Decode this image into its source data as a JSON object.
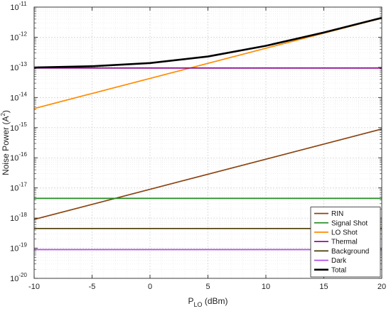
{
  "chart_data": {
    "type": "line",
    "title": "",
    "xlabel": {
      "base": "P",
      "sub": "LO",
      "rest": " (dBm)"
    },
    "ylabel": {
      "base": "Noise Power (A",
      "sup": "2",
      "rest": ")"
    },
    "xlim": [
      -10,
      20
    ],
    "ylim_exp": [
      -20,
      -11
    ],
    "y_scale": "log",
    "grid": true,
    "legend_position": "bottom-right",
    "x_ticks": [
      "-10",
      "-5",
      "0",
      "5",
      "10",
      "15",
      "20"
    ],
    "y_tick_base": "10",
    "y_tick_exponents": [
      "-20",
      "-19",
      "-18",
      "-17",
      "-16",
      "-15",
      "-14",
      "-13",
      "-12",
      "-11"
    ],
    "series": [
      {
        "name": "RIN",
        "color": "#8B4513",
        "x": [
          -10,
          20
        ],
        "y": [
          9e-19,
          9e-16
        ]
      },
      {
        "name": "Signal Shot",
        "color": "#228B22",
        "x": [
          -10,
          20
        ],
        "y": [
          4.5e-18,
          4.5e-18
        ]
      },
      {
        "name": "LO Shot",
        "color": "#FF8C00",
        "x": [
          -10,
          20
        ],
        "y": [
          4.3e-15,
          4.3e-12
        ]
      },
      {
        "name": "Thermal",
        "color": "#8B008B",
        "x": [
          -10,
          20
        ],
        "y": [
          9.5e-14,
          9.5e-14
        ]
      },
      {
        "name": "Background",
        "color": "#4A3B00",
        "x": [
          -10,
          20
        ],
        "y": [
          4.5e-19,
          4.5e-19
        ]
      },
      {
        "name": "Dark",
        "color": "#B04FE8",
        "x": [
          -10,
          20
        ],
        "y": [
          9e-20,
          9e-20
        ]
      },
      {
        "name": "Total",
        "color": "#000000",
        "x": [
          -10,
          -5,
          0,
          5,
          10,
          15,
          20
        ],
        "y": [
          9.9e-14,
          1.09e-13,
          1.39e-13,
          2.3e-13,
          5.2e-13,
          1.44e-12,
          4.4e-12
        ]
      }
    ]
  }
}
